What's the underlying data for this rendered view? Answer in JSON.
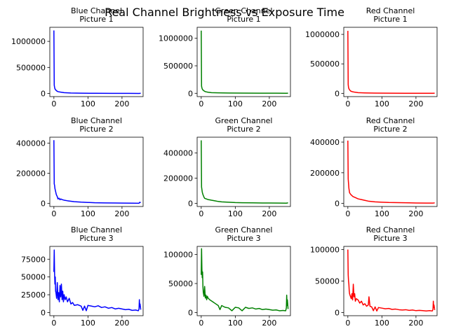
{
  "suptitle": "Real Channel Brightness vs Exposure Time",
  "chart_data": [
    {
      "type": "line",
      "title": "Blue Channel\nPicture 1",
      "color": "#0000ff",
      "xlim": [
        -12,
        262
      ],
      "ylim": [
        -60000,
        1270000
      ],
      "xticks": [
        0,
        100,
        200
      ],
      "xtick_labels": [
        "0",
        "100",
        "200"
      ],
      "yticks": [
        0,
        500000,
        1000000
      ],
      "ytick_labels": [
        "0",
        "500000",
        "1000000"
      ],
      "series": [
        {
          "x": [
            0,
            1,
            2,
            3,
            5,
            8,
            12,
            20,
            30,
            50,
            80,
            120,
            170,
            220,
            250,
            255
          ],
          "y": [
            1210000,
            160000,
            120000,
            90000,
            70000,
            50000,
            35000,
            25000,
            15000,
            9000,
            5000,
            3000,
            2000,
            1500,
            1200,
            3000
          ]
        }
      ]
    },
    {
      "type": "line",
      "title": "Green Channel\nPicture 1",
      "color": "#008000",
      "xlim": [
        -12,
        262
      ],
      "ylim": [
        -60000,
        1200000
      ],
      "xticks": [
        0,
        100,
        200
      ],
      "xtick_labels": [
        "0",
        "100",
        "200"
      ],
      "yticks": [
        0,
        500000,
        1000000
      ],
      "ytick_labels": [
        "0",
        "500000",
        "1000000"
      ],
      "series": [
        {
          "x": [
            0,
            1,
            2,
            3,
            5,
            8,
            12,
            20,
            30,
            50,
            80,
            120,
            170,
            220,
            250,
            255
          ],
          "y": [
            1140000,
            130000,
            100000,
            80000,
            60000,
            45000,
            30000,
            20000,
            12000,
            8000,
            5000,
            3000,
            2000,
            1500,
            1200,
            2500
          ]
        }
      ]
    },
    {
      "type": "line",
      "title": "Red Channel\nPicture 1",
      "color": "#ff0000",
      "xlim": [
        -12,
        262
      ],
      "ylim": [
        -55000,
        1120000
      ],
      "xticks": [
        0,
        100,
        200
      ],
      "xtick_labels": [
        "0",
        "100",
        "200"
      ],
      "yticks": [
        0,
        500000,
        1000000
      ],
      "ytick_labels": [
        "0",
        "500000",
        "1000000"
      ],
      "series": [
        {
          "x": [
            0,
            1,
            2,
            3,
            5,
            8,
            12,
            20,
            30,
            50,
            80,
            120,
            170,
            220,
            250,
            255
          ],
          "y": [
            1060000,
            150000,
            100000,
            80000,
            60000,
            40000,
            30000,
            20000,
            12000,
            8000,
            5000,
            3000,
            2000,
            1500,
            1200,
            2500
          ]
        }
      ]
    },
    {
      "type": "line",
      "title": "Blue Channel\nPicture 2",
      "color": "#0000ff",
      "xlim": [
        -12,
        262
      ],
      "ylim": [
        -20000,
        440000
      ],
      "xticks": [
        0,
        100,
        200
      ],
      "xtick_labels": [
        "0",
        "100",
        "200"
      ],
      "yticks": [
        0,
        200000,
        400000
      ],
      "ytick_labels": [
        "0",
        "200000",
        "400000"
      ],
      "series": [
        {
          "x": [
            0,
            1,
            2,
            3,
            5,
            7,
            10,
            12,
            15,
            18,
            20,
            25,
            30,
            40,
            50,
            60,
            80,
            100,
            120,
            150,
            180,
            200,
            230,
            250,
            252,
            255
          ],
          "y": [
            420000,
            130000,
            120000,
            100000,
            80000,
            60000,
            45000,
            30000,
            35000,
            25000,
            30000,
            25000,
            22000,
            18000,
            15000,
            12000,
            9000,
            7000,
            5000,
            4000,
            3000,
            2500,
            2000,
            1500,
            8000,
            5000
          ]
        }
      ]
    },
    {
      "type": "line",
      "title": "Green Channel\nPicture 2",
      "color": "#008000",
      "xlim": [
        -12,
        262
      ],
      "ylim": [
        -25000,
        525000
      ],
      "xticks": [
        0,
        100,
        200
      ],
      "xtick_labels": [
        "0",
        "100",
        "200"
      ],
      "yticks": [
        0,
        200000,
        400000
      ],
      "ytick_labels": [
        "0",
        "200000",
        "400000"
      ],
      "series": [
        {
          "x": [
            0,
            1,
            2,
            3,
            5,
            8,
            10,
            15,
            20,
            25,
            30,
            40,
            50,
            60,
            80,
            100,
            120,
            150,
            180,
            200,
            230,
            250,
            255
          ],
          "y": [
            500000,
            130000,
            110000,
            90000,
            70000,
            50000,
            40000,
            35000,
            30000,
            28000,
            25000,
            20000,
            15000,
            12000,
            9000,
            6000,
            5000,
            4000,
            3000,
            2500,
            2000,
            1500,
            4000
          ]
        }
      ]
    },
    {
      "type": "line",
      "title": "Red Channel\nPicture 2",
      "color": "#ff0000",
      "xlim": [
        -12,
        262
      ],
      "ylim": [
        -20000,
        432000
      ],
      "xticks": [
        0,
        100,
        200
      ],
      "xtick_labels": [
        "0",
        "100",
        "200"
      ],
      "yticks": [
        0,
        200000,
        400000
      ],
      "ytick_labels": [
        "0",
        "200000",
        "400000"
      ],
      "series": [
        {
          "x": [
            0,
            1,
            2,
            3,
            5,
            8,
            10,
            15,
            20,
            25,
            30,
            40,
            50,
            60,
            80,
            100,
            120,
            150,
            180,
            200,
            230,
            250,
            255
          ],
          "y": [
            410000,
            160000,
            130000,
            100000,
            70000,
            60000,
            55000,
            45000,
            40000,
            35000,
            30000,
            25000,
            20000,
            15000,
            10000,
            8000,
            6000,
            5000,
            4000,
            3000,
            2500,
            2000,
            4000
          ]
        }
      ]
    },
    {
      "type": "line",
      "title": "Blue Channel\nPicture 3",
      "color": "#0000ff",
      "xlim": [
        -12,
        262
      ],
      "ylim": [
        -4500,
        93000
      ],
      "xticks": [
        0,
        100,
        200
      ],
      "xtick_labels": [
        "0",
        "100",
        "200"
      ],
      "yticks": [
        0,
        25000,
        50000,
        75000
      ],
      "ytick_labels": [
        "0",
        "25000",
        "50000",
        "75000"
      ],
      "series": [
        {
          "x": [
            0,
            1,
            2,
            3,
            4,
            5,
            6,
            8,
            10,
            12,
            14,
            16,
            18,
            20,
            22,
            24,
            26,
            28,
            30,
            33,
            36,
            40,
            45,
            50,
            55,
            60,
            70,
            80,
            85,
            90,
            95,
            100,
            110,
            120,
            130,
            140,
            150,
            160,
            170,
            180,
            190,
            200,
            210,
            220,
            230,
            240,
            248,
            250,
            251,
            252,
            253,
            255
          ],
          "y": [
            57000,
            88000,
            55000,
            40000,
            50000,
            30000,
            28000,
            20000,
            42000,
            18000,
            28000,
            15000,
            38000,
            22000,
            40000,
            18000,
            30000,
            15000,
            25000,
            18000,
            22000,
            15000,
            20000,
            12000,
            14000,
            10000,
            11000,
            9000,
            3000,
            9000,
            2500,
            10000,
            9000,
            8000,
            9500,
            7000,
            8000,
            6000,
            7000,
            5000,
            6000,
            5000,
            4000,
            4500,
            3000,
            3500,
            2500,
            5000,
            18000,
            8000,
            12000,
            4000
          ]
        }
      ]
    },
    {
      "type": "line",
      "title": "Green Channel\nPicture 3",
      "color": "#008000",
      "xlim": [
        -12,
        262
      ],
      "ylim": [
        -5500,
        114000
      ],
      "xticks": [
        0,
        100,
        200
      ],
      "xtick_labels": [
        "0",
        "100",
        "200"
      ],
      "yticks": [
        0,
        50000,
        100000
      ],
      "ytick_labels": [
        "0",
        "50000",
        "100000"
      ],
      "series": [
        {
          "x": [
            0,
            1,
            2,
            3,
            4,
            5,
            6,
            8,
            10,
            12,
            14,
            16,
            18,
            20,
            25,
            30,
            35,
            40,
            50,
            55,
            60,
            70,
            80,
            90,
            100,
            110,
            120,
            130,
            140,
            150,
            160,
            170,
            180,
            190,
            200,
            210,
            220,
            230,
            240,
            248,
            250,
            251,
            252,
            253,
            254,
            255
          ],
          "y": [
            65000,
            110000,
            75000,
            60000,
            70000,
            45000,
            35000,
            28000,
            45000,
            25000,
            30000,
            22000,
            28000,
            25000,
            22000,
            20000,
            18000,
            16000,
            12000,
            5000,
            12000,
            9000,
            8000,
            3000,
            9000,
            8000,
            3000,
            9000,
            7000,
            8000,
            6000,
            7000,
            5000,
            6000,
            5000,
            4000,
            4500,
            3000,
            3500,
            3000,
            8000,
            30000,
            12000,
            22000,
            15000,
            6000
          ]
        }
      ]
    },
    {
      "type": "line",
      "title": "Red Channel\nPicture 3",
      "color": "#ff0000",
      "xlim": [
        -12,
        262
      ],
      "ylim": [
        -5000,
        105000
      ],
      "xticks": [
        0,
        100,
        200
      ],
      "xtick_labels": [
        "0",
        "100",
        "200"
      ],
      "yticks": [
        0,
        50000,
        100000
      ],
      "ytick_labels": [
        "0",
        "50000",
        "100000"
      ],
      "series": [
        {
          "x": [
            0,
            1,
            2,
            3,
            4,
            5,
            6,
            8,
            10,
            12,
            14,
            16,
            18,
            20,
            22,
            25,
            30,
            35,
            40,
            45,
            50,
            55,
            60,
            62,
            65,
            70,
            75,
            80,
            85,
            90,
            100,
            110,
            120,
            130,
            140,
            150,
            160,
            170,
            180,
            190,
            200,
            210,
            220,
            230,
            240,
            248,
            250,
            251,
            252,
            253,
            255
          ],
          "y": [
            100000,
            60000,
            50000,
            45000,
            35000,
            30000,
            28000,
            25000,
            22000,
            30000,
            20000,
            45000,
            25000,
            30000,
            18000,
            22000,
            20000,
            15000,
            18000,
            12000,
            14000,
            10000,
            12000,
            25000,
            10000,
            9000,
            3000,
            9000,
            2500,
            8000,
            7000,
            6000,
            6500,
            5000,
            5500,
            4500,
            4000,
            4500,
            3500,
            4000,
            3000,
            3500,
            3000,
            2500,
            3000,
            2500,
            5000,
            18000,
            8000,
            12000,
            4000
          ]
        }
      ]
    }
  ]
}
